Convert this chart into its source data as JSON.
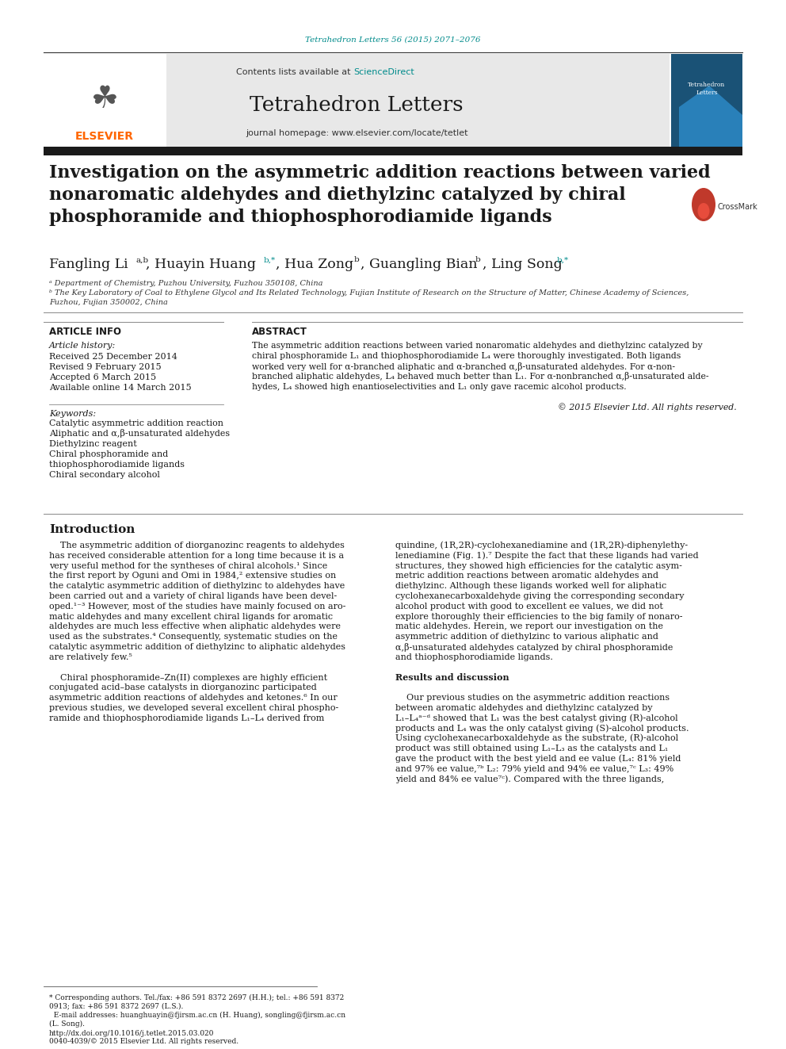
{
  "page_bg": "#ffffff",
  "header_citation": "Tetrahedron Letters 56 (2015) 2071–2076",
  "header_citation_color": "#008B8B",
  "journal_header_bg": "#e8e8e8",
  "journal_name": "Tetrahedron Letters",
  "journal_homepage": "journal homepage: www.elsevier.com/locate/tetlet",
  "contents_text": "Contents lists available at ",
  "science_direct": "ScienceDirect",
  "science_direct_color": "#008B8B",
  "thick_bar_color": "#1a1a1a",
  "elsevier_color": "#FF6600",
  "article_title": "Investigation on the asymmetric addition reactions between varied\nnonaromatic aldehydes and diethylzinc catalyzed by chiral\nphosphoramide and thiophosphorodiamide ligands",
  "article_info_title": "ARTICLE INFO",
  "abstract_title": "ABSTRACT",
  "article_history_label": "Article history:",
  "received": "Received 25 December 2014",
  "revised": "Revised 9 February 2015",
  "accepted": "Accepted 6 March 2015",
  "available": "Available online 14 March 2015",
  "keywords_label": "Keywords:",
  "keywords": [
    "Catalytic asymmetric addition reaction",
    "Aliphatic and α,β-unsaturated aldehydes",
    "Diethylzinc reagent",
    "Chiral phosphoramide and\nthiophosphorodiamide ligands",
    "Chiral secondary alcohol"
  ],
  "copyright": "© 2015 Elsevier Ltd. All rights reserved.",
  "intro_title": "Introduction",
  "results_title": "Results and discussion",
  "footnote_text": "* Corresponding authors. Tel./fax: +86 591 8372 2697 (H.H.); tel.: +86 591 8372\n0913; fax: +86 591 8372 2697 (L.S.).\n  E-mail addresses: huanghuayin@fjirsm.ac.cn (H. Huang), songling@fjirsm.ac.cn\n(L. Song).",
  "doi_line1": "http://dx.doi.org/10.1016/j.tetlet.2015.03.020",
  "doi_line2": "0040-4039/© 2015 Elsevier Ltd. All rights reserved.",
  "abstract_lines": [
    "The asymmetric addition reactions between varied nonaromatic aldehydes and diethylzinc catalyzed by",
    "chiral phosphoramide L₁ and thiophosphorodiamide L₄ were thoroughly investigated. Both ligands",
    "worked very well for α-branched aliphatic and α-branched α,β-unsaturated aldehydes. For α-non-",
    "branched aliphatic aldehydes, L₄ behaved much better than L₁. For α-nonbranched α,β-unsaturated alde-",
    "hydes, L₄ showed high enantioselectivities and L₁ only gave racemic alcohol products."
  ],
  "intro_left": [
    "    The asymmetric addition of diorganozinc reagents to aldehydes",
    "has received considerable attention for a long time because it is a",
    "very useful method for the syntheses of chiral alcohols.¹ Since",
    "the first report by Oguni and Omi in 1984,² extensive studies on",
    "the catalytic asymmetric addition of diethylzinc to aldehydes have",
    "been carried out and a variety of chiral ligands have been devel-",
    "oped.¹⁻³ However, most of the studies have mainly focused on aro-",
    "matic aldehydes and many excellent chiral ligands for aromatic",
    "aldehydes are much less effective when aliphatic aldehydes were",
    "used as the substrates.⁴ Consequently, systematic studies on the",
    "catalytic asymmetric addition of diethylzinc to aliphatic aldehydes",
    "are relatively few.⁵",
    "",
    "    Chiral phosphoramide–Zn(II) complexes are highly efficient",
    "conjugated acid–base catalysts in diorganozinc participated",
    "asymmetric addition reactions of aldehydes and ketones.⁶ In our",
    "previous studies, we developed several excellent chiral phospho-",
    "ramide and thiophosphorodiamide ligands L₁–L₄ derived from"
  ],
  "intro_right": [
    "quindine, (1R,2R)-cyclohexanediamine and (1R,2R)-diphenylethy-",
    "lenediamine (Fig. 1).⁷ Despite the fact that these ligands had varied",
    "structures, they showed high efficiencies for the catalytic asym-",
    "metric addition reactions between aromatic aldehydes and",
    "diethylzinc. Although these ligands worked well for aliphatic",
    "cyclohexanecarboxaldehyde giving the corresponding secondary",
    "alcohol product with good to excellent ee values, we did not",
    "explore thoroughly their efficiencies to the big family of nonaro-",
    "matic aldehydes. Herein, we report our investigation on the",
    "asymmetric addition of diethylzinc to various aliphatic and",
    "α,β-unsaturated aldehydes catalyzed by chiral phosphoramide",
    "and thiophosphorodiamide ligands.",
    "",
    "Results and discussion",
    "",
    "    Our previous studies on the asymmetric addition reactions",
    "between aromatic aldehydes and diethylzinc catalyzed by",
    "L₁–L₄ᵃ⁻ᵈ showed that L₁ was the best catalyst giving (R)-alcohol",
    "products and L₄ was the only catalyst giving (S)-alcohol products.",
    "Using cyclohexanecarboxaldehyde as the substrate, (R)-alcohol",
    "product was still obtained using L₁–L₃ as the catalysts and L₁",
    "gave the product with the best yield and ee value (L₄: 81% yield",
    "and 97% ee value,⁷ᵇ L₂: 79% yield and 94% ee value,⁷ᶜ L₃: 49%",
    "yield and 84% ee value⁷ᶜ). Compared with the three ligands,"
  ]
}
